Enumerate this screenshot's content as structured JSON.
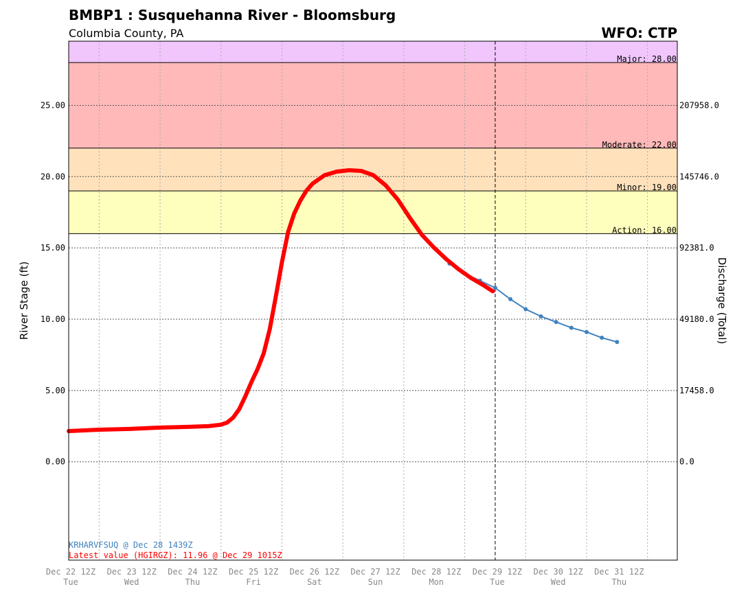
{
  "header": {
    "title": "BMBP1 : Susquehanna River - Bloomsburg",
    "subtitle": "Columbia County, PA",
    "wfo": "WFO: CTP"
  },
  "colors": {
    "major": "#f0c6fc",
    "moderate": "#ffb9b9",
    "minor": "#ffe2bc",
    "action": "#ffffbd",
    "observed": "#ff0000",
    "forecast": "#3f82bf",
    "forecast_note": "#3f82bf",
    "latest_note": "#ff0000"
  },
  "chart_data": {
    "type": "line",
    "ylabel": "River Stage (ft)",
    "y2label": "Discharge (Total)",
    "ylim": [
      -6.9,
      29.5
    ],
    "grid": true,
    "y_ticks": [
      0,
      5,
      10,
      15,
      20,
      25
    ],
    "y_tick_labels": [
      "0.00",
      "5.00",
      "10.00",
      "15.00",
      "20.00",
      "25.00"
    ],
    "y2_tick_labels": [
      "0.0",
      "17458.0",
      "49180.0",
      "92381.0",
      "145746.0",
      "207958.0"
    ],
    "x_ticks": [
      {
        "day": 0,
        "label": "Dec 22 12Z",
        "weekday": "Tue"
      },
      {
        "day": 1,
        "label": "Dec 23 12Z",
        "weekday": "Wed"
      },
      {
        "day": 2,
        "label": "Dec 24 12Z",
        "weekday": "Thu"
      },
      {
        "day": 3,
        "label": "Dec 25 12Z",
        "weekday": "Fri"
      },
      {
        "day": 4,
        "label": "Dec 26 12Z",
        "weekday": "Sat"
      },
      {
        "day": 5,
        "label": "Dec 27 12Z",
        "weekday": "Sun"
      },
      {
        "day": 6,
        "label": "Dec 28 12Z",
        "weekday": "Mon"
      },
      {
        "day": 7,
        "label": "Dec 29 12Z",
        "weekday": "Tue"
      },
      {
        "day": 8,
        "label": "Dec 30 12Z",
        "weekday": "Wed"
      },
      {
        "day": 9,
        "label": "Dec 31 12Z",
        "weekday": "Thu"
      }
    ],
    "xlim": [
      0,
      10
    ],
    "current_time_day": 7,
    "flood_categories": [
      {
        "name": "Major",
        "label": "Major: 28.00",
        "value": 28.0,
        "color_key": "major"
      },
      {
        "name": "Moderate",
        "label": "Moderate: 22.00",
        "value": 22.0,
        "color_key": "moderate"
      },
      {
        "name": "Minor",
        "label": "Minor: 19.00",
        "value": 19.0,
        "color_key": "minor"
      },
      {
        "name": "Action",
        "label": "Action: 16.00",
        "value": 16.0,
        "color_key": "action"
      }
    ],
    "series": [
      {
        "name": "Observed",
        "style": "observed",
        "points": [
          [
            0.0,
            2.15
          ],
          [
            0.5,
            2.25
          ],
          [
            1.0,
            2.3
          ],
          [
            1.25,
            2.35
          ],
          [
            1.5,
            2.4
          ],
          [
            2.0,
            2.45
          ],
          [
            2.3,
            2.5
          ],
          [
            2.5,
            2.6
          ],
          [
            2.6,
            2.75
          ],
          [
            2.7,
            3.1
          ],
          [
            2.8,
            3.7
          ],
          [
            2.9,
            4.6
          ],
          [
            3.0,
            5.6
          ],
          [
            3.1,
            6.5
          ],
          [
            3.2,
            7.6
          ],
          [
            3.3,
            9.3
          ],
          [
            3.4,
            11.6
          ],
          [
            3.5,
            14.0
          ],
          [
            3.6,
            16.1
          ],
          [
            3.7,
            17.4
          ],
          [
            3.8,
            18.3
          ],
          [
            3.9,
            19.0
          ],
          [
            4.0,
            19.5
          ],
          [
            4.2,
            20.1
          ],
          [
            4.4,
            20.35
          ],
          [
            4.6,
            20.45
          ],
          [
            4.8,
            20.4
          ],
          [
            5.0,
            20.1
          ],
          [
            5.2,
            19.4
          ],
          [
            5.4,
            18.4
          ],
          [
            5.6,
            17.1
          ],
          [
            5.8,
            15.9
          ],
          [
            6.0,
            15.0
          ],
          [
            6.2,
            14.2
          ],
          [
            6.4,
            13.5
          ],
          [
            6.6,
            12.9
          ],
          [
            6.8,
            12.4
          ],
          [
            6.96,
            11.96
          ]
        ]
      },
      {
        "name": "Forecast",
        "style": "forecast",
        "points": [
          [
            6.25,
            13.9
          ],
          [
            6.5,
            13.2
          ],
          [
            6.75,
            12.7
          ],
          [
            7.0,
            12.2
          ],
          [
            7.25,
            11.4
          ],
          [
            7.5,
            10.7
          ],
          [
            7.75,
            10.2
          ],
          [
            8.0,
            9.8
          ],
          [
            8.25,
            9.4
          ],
          [
            8.5,
            9.1
          ],
          [
            8.75,
            8.7
          ],
          [
            9.0,
            8.4
          ]
        ]
      }
    ],
    "annotations": {
      "forecast_note": "KRHARVFSUQ @ Dec 28 1439Z",
      "latest_note": "Latest value (HGIRGZ): 11.96 @ Dec 29 1015Z"
    }
  }
}
